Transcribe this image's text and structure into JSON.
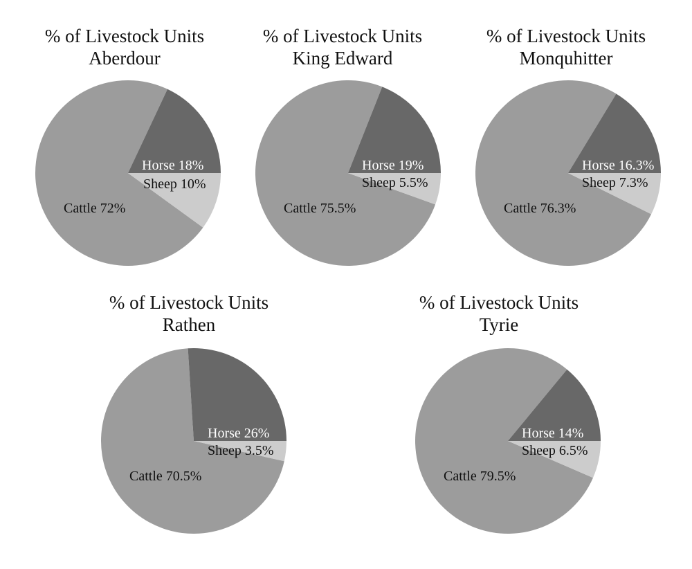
{
  "colors": {
    "Horse": "#686868",
    "Sheep": "#cccccc",
    "Cattle": "#9c9c9c",
    "label_on_dark": "#ffffff",
    "label_on_light": "#111111"
  },
  "chart_data": [
    {
      "type": "pie",
      "title": "% of Livestock Units",
      "subtitle": "Aberdour",
      "slices": [
        {
          "name": "Horse",
          "value": 18,
          "label": "Horse 18%"
        },
        {
          "name": "Sheep",
          "value": 10,
          "label": "Sheep 10%"
        },
        {
          "name": "Cattle",
          "value": 72,
          "label": "Cattle 72%"
        }
      ]
    },
    {
      "type": "pie",
      "title": "% of Livestock Units",
      "subtitle": "King Edward",
      "slices": [
        {
          "name": "Horse",
          "value": 19,
          "label": "Horse 19%"
        },
        {
          "name": "Sheep",
          "value": 5.5,
          "label": "Sheep 5.5%"
        },
        {
          "name": "Cattle",
          "value": 75.5,
          "label": "Cattle 75.5%"
        }
      ]
    },
    {
      "type": "pie",
      "title": "% of Livestock Units",
      "subtitle": "Monquhitter",
      "slices": [
        {
          "name": "Horse",
          "value": 16.3,
          "label": "Horse 16.3%"
        },
        {
          "name": "Sheep",
          "value": 7.3,
          "label": "Sheep 7.3%"
        },
        {
          "name": "Cattle",
          "value": 76.3,
          "label": "Cattle 76.3%"
        }
      ]
    },
    {
      "type": "pie",
      "title": "% of Livestock Units",
      "subtitle": "Rathen",
      "slices": [
        {
          "name": "Horse",
          "value": 26,
          "label": "Horse 26%"
        },
        {
          "name": "Sheep",
          "value": 3.5,
          "label": "Sheep 3.5%"
        },
        {
          "name": "Cattle",
          "value": 70.5,
          "label": "Cattle 70.5%"
        }
      ]
    },
    {
      "type": "pie",
      "title": "% of Livestock Units",
      "subtitle": "Tyrie",
      "slices": [
        {
          "name": "Horse",
          "value": 14,
          "label": "Horse 14%"
        },
        {
          "name": "Sheep",
          "value": 6.5,
          "label": "Sheep 6.5%"
        },
        {
          "name": "Cattle",
          "value": 79.5,
          "label": "Cattle 79.5%"
        }
      ]
    }
  ]
}
